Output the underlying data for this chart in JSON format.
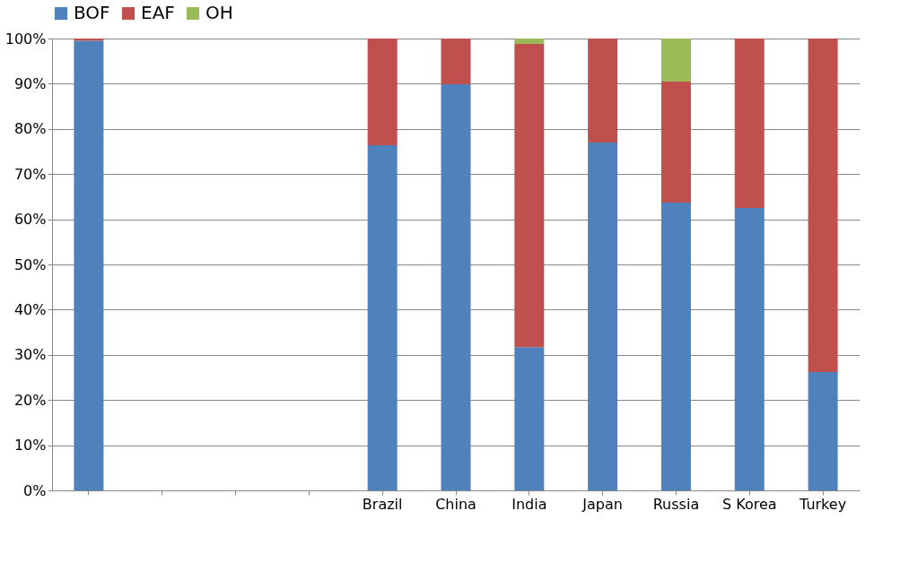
{
  "chart_data": {
    "type": "bar",
    "stacked": true,
    "categories": [
      null,
      null,
      null,
      null,
      "Brazil",
      "China",
      "India",
      "Japan",
      "Russia",
      "S Korea",
      "Turkey"
    ],
    "series": [
      {
        "name": "BOF",
        "color": "#4f81bd",
        "values": [
          99.5,
          null,
          null,
          null,
          76.4,
          89.9,
          31.7,
          77.0,
          63.7,
          62.5,
          26.2
        ]
      },
      {
        "name": "EAF",
        "color": "#c0504d",
        "values": [
          0.5,
          null,
          null,
          null,
          23.6,
          10.1,
          67.1,
          23.0,
          26.8,
          37.5,
          73.8
        ]
      },
      {
        "name": "OH",
        "color": "#9bbb59",
        "values": [
          null,
          null,
          null,
          null,
          null,
          null,
          1.2,
          null,
          9.5,
          null,
          null
        ]
      }
    ],
    "ylim": [
      0,
      100
    ],
    "yticks": [
      {
        "value": 0,
        "label": "0%"
      },
      {
        "value": 10,
        "label": "10%"
      },
      {
        "value": 20,
        "label": "20%"
      },
      {
        "value": 30,
        "label": "30%"
      },
      {
        "value": 40,
        "label": "40%"
      },
      {
        "value": 50,
        "label": "50%"
      },
      {
        "value": 60,
        "label": "60%"
      },
      {
        "value": 70,
        "label": "70%"
      },
      {
        "value": 80,
        "label": "80%"
      },
      {
        "value": 90,
        "label": "90%"
      },
      {
        "value": 100,
        "label": "100%"
      }
    ],
    "grid": "y",
    "legend": "top"
  }
}
